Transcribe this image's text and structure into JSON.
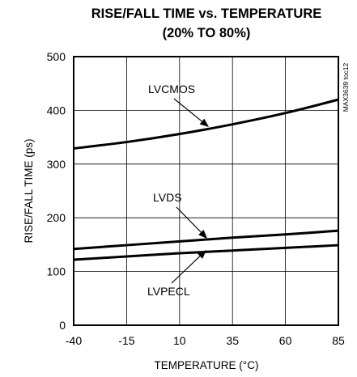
{
  "chart_data": {
    "type": "line",
    "title": "RISE/FALL TIME vs. TEMPERATURE",
    "subtitle": "(20% TO 80%)",
    "xlabel": "TEMPERATURE (°C)",
    "ylabel": "RISE/FALL TIME (ps)",
    "xlim": [
      -40,
      85
    ],
    "ylim": [
      0,
      500
    ],
    "x_ticks": [
      -40,
      -15,
      10,
      35,
      60,
      85
    ],
    "y_ticks": [
      0,
      100,
      200,
      300,
      400,
      500
    ],
    "grid": true,
    "figure_code": "MAX3639 toc12",
    "x": [
      -40,
      -15,
      10,
      35,
      60,
      85
    ],
    "series": [
      {
        "name": "LVCMOS",
        "values": [
          329,
          341,
          356,
          374,
          395,
          420
        ],
        "annotation_at_x": 10
      },
      {
        "name": "LVDS",
        "values": [
          142,
          149,
          156,
          163,
          169,
          176
        ],
        "annotation_at_x": 10
      },
      {
        "name": "LVPECL",
        "values": [
          122,
          128,
          134,
          139,
          144,
          149
        ],
        "annotation_at_x": 10
      }
    ]
  }
}
